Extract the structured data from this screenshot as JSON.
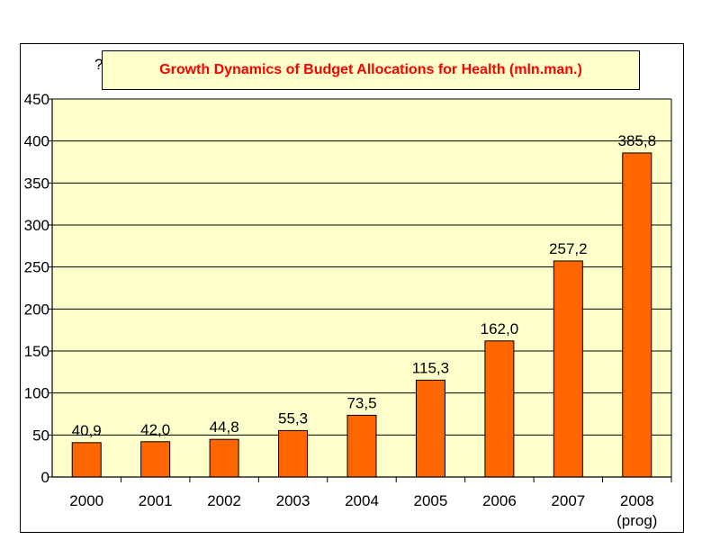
{
  "header": {
    "stray_glyph": "?"
  },
  "chart_data": {
    "type": "bar",
    "title": "Growth Dynamics of Budget Allocations for Health (mln.man.)",
    "xlabel": "",
    "ylabel": "",
    "categories": [
      "2000",
      "2001",
      "2002",
      "2003",
      "2004",
      "2005",
      "2006",
      "2007",
      "2008"
    ],
    "category_sublabels": [
      "",
      "",
      "",
      "",
      "",
      "",
      "",
      "",
      "(prog)"
    ],
    "values": [
      40.9,
      42.0,
      44.8,
      55.3,
      73.5,
      115.3,
      162.0,
      257.2,
      385.8
    ],
    "value_labels": [
      "40,9",
      "42,0",
      "44,8",
      "55,3",
      "73,5",
      "115,3",
      "162,0",
      "257,2",
      "385,8"
    ],
    "ylim": [
      0,
      450
    ],
    "yticks": [
      0,
      50,
      100,
      150,
      200,
      250,
      300,
      350,
      400,
      450
    ],
    "grid": true,
    "legend": "none",
    "colors": {
      "bar": "#ff6600",
      "bar_outline": "#000000",
      "plot_background": "#ffffcc",
      "title_background": "#ffffcc",
      "title_text": "#ff0000",
      "gridline": "#000000"
    }
  }
}
